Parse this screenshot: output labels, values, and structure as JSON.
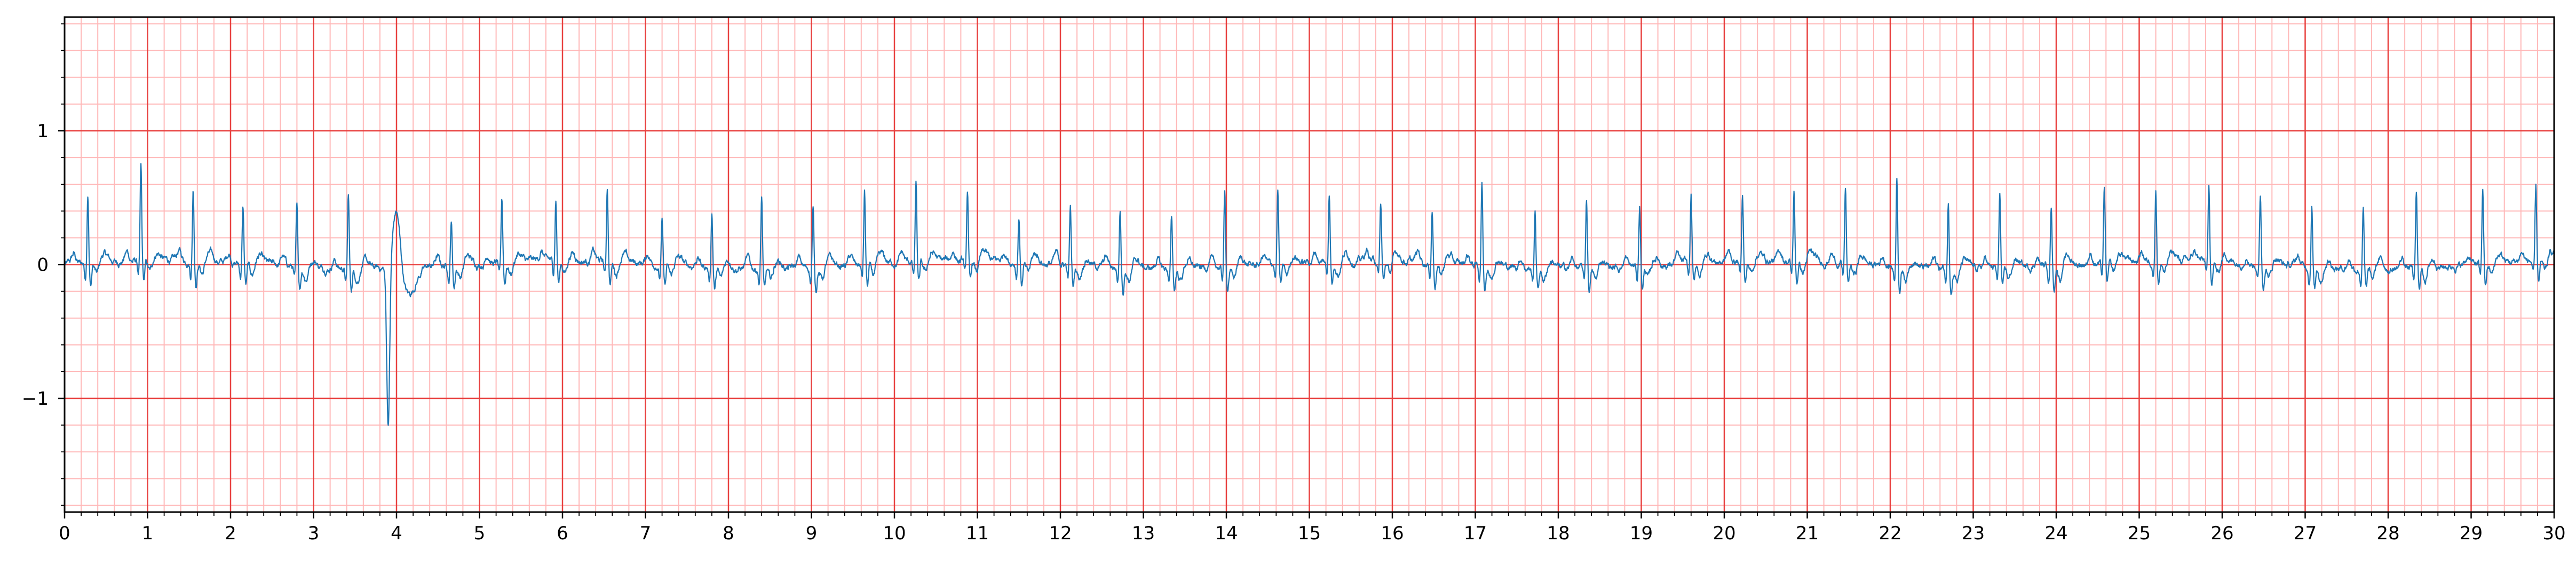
{
  "chart_data": {
    "type": "line",
    "title": "",
    "xlabel": "",
    "ylabel": "",
    "xlim": [
      0,
      30
    ],
    "ylim": [
      -1.85,
      1.85
    ],
    "xticks": [
      0,
      1,
      2,
      3,
      4,
      5,
      6,
      7,
      8,
      9,
      10,
      11,
      12,
      13,
      14,
      15,
      16,
      17,
      18,
      19,
      20,
      21,
      22,
      23,
      24,
      25,
      26,
      27,
      28,
      29,
      30
    ],
    "xtick_labels": [
      "0",
      "1",
      "2",
      "3",
      "4",
      "5",
      "6",
      "7",
      "8",
      "9",
      "10",
      "11",
      "12",
      "13",
      "14",
      "15",
      "16",
      "17",
      "18",
      "19",
      "20",
      "21",
      "22",
      "23",
      "24",
      "25",
      "26",
      "27",
      "28",
      "29",
      "30"
    ],
    "yticks": [
      -1,
      0,
      1
    ],
    "ytick_labels": [
      "−1",
      "0",
      "1"
    ],
    "grid": {
      "major_x_step": 1,
      "minor_x_step": 0.2,
      "major_y_step": 1,
      "minor_y_step": 0.2,
      "major_color": "#e8403f",
      "minor_color": "#ffb8b8"
    },
    "series": [
      {
        "color": "#1f77b4",
        "beat_times": [
          0.28,
          0.92,
          1.55,
          2.15,
          2.8,
          3.42,
          3.9,
          4.66,
          5.27,
          5.92,
          6.54,
          7.2,
          7.8,
          8.4,
          9.02,
          9.64,
          10.26,
          10.88,
          11.5,
          12.12,
          12.72,
          13.34,
          13.98,
          14.62,
          15.24,
          15.86,
          16.48,
          17.08,
          17.72,
          18.34,
          18.98,
          19.6,
          20.22,
          20.84,
          21.46,
          22.08,
          22.7,
          23.32,
          23.94,
          24.58,
          25.2,
          25.84,
          26.46,
          27.08,
          27.7,
          28.34,
          29.14,
          29.78
        ],
        "r_peak_amplitudes": [
          0.52,
          0.7,
          0.55,
          0.42,
          0.46,
          0.55,
          0.34,
          0.35,
          0.46,
          0.46,
          0.56,
          0.32,
          0.42,
          0.54,
          0.45,
          0.54,
          0.58,
          0.52,
          0.35,
          0.42,
          0.45,
          0.38,
          0.55,
          0.55,
          0.52,
          0.42,
          0.4,
          0.62,
          0.42,
          0.52,
          0.46,
          0.51,
          0.52,
          0.52,
          0.56,
          0.68,
          0.52,
          0.56,
          0.47,
          0.54,
          0.55,
          0.58,
          0.52,
          0.48,
          0.45,
          0.55,
          0.56,
          0.54
        ],
        "ectopic_beat": {
          "t": 3.9,
          "min": -1.2,
          "max": 0.45
        }
      }
    ]
  }
}
